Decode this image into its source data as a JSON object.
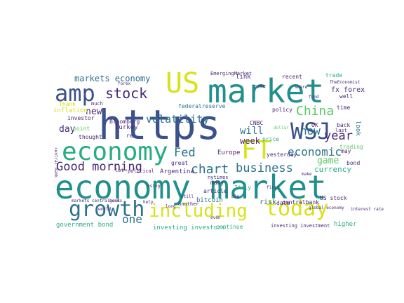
{
  "colors": {
    "background": "#ffffff",
    "purple": "#482878",
    "indigo": "#3b518b",
    "blue": "#2c728e",
    "teal": "#21908d",
    "green": "#27ad81",
    "lime": "#5cc863",
    "yellow": "#d8e219"
  },
  "words": [
    {
      "text": "economy market",
      "color": "teal"
    },
    {
      "text": "https",
      "color": "indigo"
    },
    {
      "text": "market",
      "color": "teal"
    },
    {
      "text": "economy",
      "color": "green"
    },
    {
      "text": "US",
      "color": "yellow"
    },
    {
      "text": "amp",
      "color": "indigo"
    },
    {
      "text": "FT",
      "color": "yellow"
    },
    {
      "text": "WSJ",
      "color": "indigo"
    },
    {
      "text": "growth",
      "color": "blue"
    },
    {
      "text": "today",
      "color": "yellow"
    },
    {
      "text": "including",
      "color": "yellow"
    },
    {
      "text": "stock",
      "color": "purple"
    },
    {
      "text": "Good morning",
      "color": "purple"
    },
    {
      "text": "China",
      "color": "lime"
    },
    {
      "text": "chart",
      "color": "blue"
    },
    {
      "text": "business",
      "color": "blue"
    },
    {
      "text": "economic",
      "color": "blue"
    },
    {
      "text": "year",
      "color": "purple"
    },
    {
      "text": "Fed",
      "color": "blue"
    },
    {
      "text": "now",
      "color": "blue"
    },
    {
      "text": "volatility",
      "color": "blue"
    },
    {
      "text": "markets economy",
      "color": "blue"
    },
    {
      "text": "one",
      "color": "blue"
    },
    {
      "text": "will",
      "color": "blue"
    },
    {
      "text": "game",
      "color": "lime"
    },
    {
      "text": "week",
      "color": "purple"
    },
    {
      "text": "new",
      "color": "purple"
    },
    {
      "text": "day",
      "color": "purple"
    },
    {
      "text": "fx forex",
      "color": "purple"
    },
    {
      "text": "currency",
      "color": "green"
    },
    {
      "text": "Europe",
      "color": "purple"
    },
    {
      "text": "Argentina",
      "color": "purple"
    },
    {
      "text": "risk",
      "color": "blue"
    },
    {
      "text": "bitcoin",
      "color": "blue"
    },
    {
      "text": "government bond",
      "color": "green"
    },
    {
      "text": "investing investors",
      "color": "green"
    },
    {
      "text": "continue",
      "color": "green"
    },
    {
      "text": "centralbank",
      "color": "purple"
    },
    {
      "text": "higher",
      "color": "green"
    },
    {
      "text": "Turkey",
      "color": "purple"
    },
    {
      "text": "yesterday",
      "color": "purple"
    },
    {
      "text": "CNBC",
      "color": "purple"
    },
    {
      "text": "Bloomberg",
      "color": "purple"
    },
    {
      "text": "thought",
      "color": "purple"
    },
    {
      "text": "price",
      "color": "green"
    },
    {
      "text": "UK",
      "color": "purple"
    },
    {
      "text": "Italy",
      "color": "green"
    },
    {
      "text": "data",
      "color": "purple"
    },
    {
      "text": "article",
      "color": "purple"
    },
    {
      "text": "many",
      "color": "purple"
    },
    {
      "text": "link",
      "color": "purple"
    },
    {
      "text": "recent",
      "color": "purple"
    },
    {
      "text": "trade",
      "color": "green"
    },
    {
      "text": "EmergingMarket",
      "color": "purple"
    },
    {
      "text": "federalreserve",
      "color": "blue"
    },
    {
      "text": "policy",
      "color": "purple"
    },
    {
      "text": "great",
      "color": "purple"
    },
    {
      "text": "political",
      "color": "purple"
    },
    {
      "text": "lot",
      "color": "purple"
    },
    {
      "text": "inflation",
      "color": "yellow"
    },
    {
      "text": "Thank",
      "color": "yellow"
    },
    {
      "text": "investor",
      "color": "purple"
    },
    {
      "text": "point",
      "color": "lime"
    },
    {
      "text": "much",
      "color": "purple"
    },
    {
      "text": "back",
      "color": "purple"
    },
    {
      "text": "well",
      "color": "purple"
    },
    {
      "text": "may",
      "color": "purple"
    },
    {
      "text": "bond",
      "color": "purple"
    },
    {
      "text": "look",
      "color": "blue"
    },
    {
      "text": "trading",
      "color": "lime"
    },
    {
      "text": "time",
      "color": "purple"
    },
    {
      "text": "another",
      "color": "purple"
    },
    {
      "text": "investing investment",
      "color": "purple"
    },
    {
      "text": "US stock",
      "color": "purple"
    },
    {
      "text": "re",
      "color": "purple"
    },
    {
      "text": "come",
      "color": "purple"
    },
    {
      "text": "nytimes",
      "color": "purple"
    },
    {
      "text": "last",
      "color": "purple"
    },
    {
      "text": "markets centralbanks",
      "color": "purple"
    },
    {
      "text": "global economy",
      "color": "purple"
    },
    {
      "text": "TheEconomist",
      "color": "purple"
    },
    {
      "text": "dollar",
      "color": "lime"
    },
    {
      "text": "still",
      "color": "purple"
    },
    {
      "text": "central bank",
      "color": "purple"
    },
    {
      "text": "help",
      "color": "purple"
    },
    {
      "text": "good",
      "color": "purple"
    },
    {
      "text": "make",
      "color": "purple"
    },
    {
      "text": "even",
      "color": "purple"
    },
    {
      "text": "interest rate",
      "color": "purple"
    },
    {
      "text": "forex",
      "color": "purple"
    },
    {
      "text": "long",
      "color": "purple"
    },
    {
      "text": "fund",
      "color": "purple"
    },
    {
      "text": "using",
      "color": "purple"
    },
    {
      "text": "first",
      "color": "purple"
    },
    {
      "text": "world",
      "color": "purple"
    },
    {
      "text": "big",
      "color": "purple"
    },
    {
      "text": "share",
      "color": "purple"
    }
  ]
}
